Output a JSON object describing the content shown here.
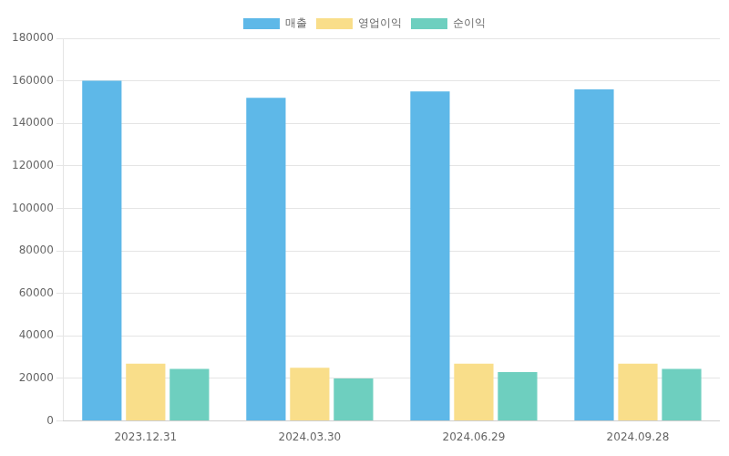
{
  "chart_data": {
    "type": "bar",
    "categories": [
      "2023.12.31",
      "2024.03.30",
      "2024.06.29",
      "2024.09.28"
    ],
    "series": [
      {
        "name": "매출",
        "color": "#5EB8E8",
        "values": [
          160000,
          152000,
          155000,
          156000
        ]
      },
      {
        "name": "영업이익",
        "color": "#F9DE8A",
        "values": [
          27000,
          25000,
          27000,
          27000
        ]
      },
      {
        "name": "순이익",
        "color": "#6ECFBF",
        "values": [
          24500,
          20000,
          23000,
          24500
        ]
      }
    ],
    "ylim": [
      0,
      180000
    ],
    "yticks": [
      0,
      20000,
      40000,
      60000,
      80000,
      100000,
      120000,
      140000,
      160000,
      180000
    ],
    "grid": true,
    "legend": "top"
  }
}
